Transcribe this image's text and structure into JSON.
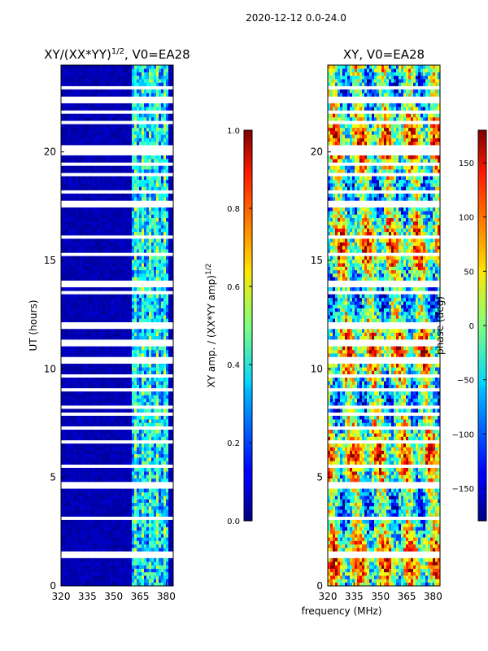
{
  "figure_title": "2020-12-12 0.0-24.0",
  "xlabel": "frequency (MHz)",
  "chart_data": [
    {
      "type": "heatmap",
      "title_main": "XY/(XX*YY)",
      "title_sup": "1/2",
      "title_suffix": ", V0=EA28",
      "xlabel": "frequency (MHz)",
      "ylabel": "UT (hours)",
      "xlim": [
        320,
        384
      ],
      "ylim": [
        0,
        24
      ],
      "xticks": [
        320,
        335,
        350,
        365,
        380
      ],
      "yticks": [
        0,
        5,
        10,
        15,
        20
      ],
      "colorbar": {
        "label_main": "XY amp. / (XX*YY amp)",
        "label_sup": "1/2",
        "range": [
          0.0,
          1.0
        ],
        "ticks": [
          "0.0",
          "0.2",
          "0.4",
          "0.6",
          "0.8",
          "1.0"
        ],
        "colormap": "jet"
      }
    },
    {
      "type": "heatmap",
      "title": "XY, V0=EA28",
      "xlabel": "frequency (MHz)",
      "ylabel": "",
      "xlim": [
        320,
        384
      ],
      "ylim": [
        0,
        24
      ],
      "xticks": [
        320,
        335,
        350,
        365,
        380
      ],
      "yticks": [
        0,
        5,
        10,
        15,
        20
      ],
      "colorbar": {
        "label": "phase (deg)",
        "range": [
          -180,
          180
        ],
        "ticks": [
          "−150",
          "−100",
          "−50",
          "0",
          "50",
          "100",
          "150"
        ],
        "colormap": "jet"
      }
    }
  ],
  "colors": {
    "jet_low": "#00007f",
    "jet_high": "#7f0000",
    "axis": "#000000",
    "background": "#ffffff"
  }
}
